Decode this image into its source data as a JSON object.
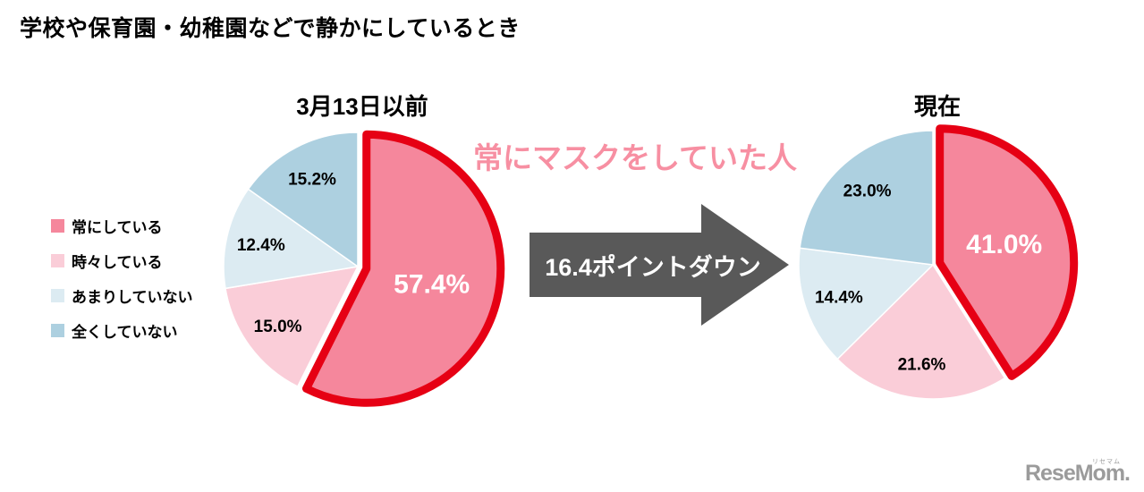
{
  "page_title": "学校や保育園・幼稚園などで静かにしているとき",
  "headline": {
    "text": "常にマスクをしていた人",
    "color": "#F78FA2"
  },
  "arrow": {
    "label": "16.4ポイントダウン",
    "color": "#595959"
  },
  "highlight_color": "#E60014",
  "legend": {
    "items": [
      {
        "label": "常にしている",
        "color": "#F5879C"
      },
      {
        "label": "時々している",
        "color": "#FACDD8"
      },
      {
        "label": "あまりしていない",
        "color": "#DCEBF2"
      },
      {
        "label": "全くしていない",
        "color": "#ADD0E0"
      }
    ]
  },
  "logo": {
    "text": "ReseMom.",
    "ruby": "リセマム",
    "color": "#9b9b9b"
  },
  "chart_data": [
    {
      "type": "pie",
      "title": "3月13日以前",
      "categories": [
        "常にしている",
        "時々している",
        "あまりしていない",
        "全くしていない"
      ],
      "values": [
        57.4,
        15.0,
        12.4,
        15.2
      ],
      "value_labels": [
        "57.4%",
        "15.0%",
        "12.4%",
        "15.2%"
      ],
      "colors": [
        "#F5879C",
        "#FACDD8",
        "#DCEBF2",
        "#ADD0E0"
      ],
      "highlight_index": 0,
      "start_angle": "top",
      "direction": "clockwise"
    },
    {
      "type": "pie",
      "title": "現在",
      "categories": [
        "常にしている",
        "時々している",
        "あまりしていない",
        "全くしていない"
      ],
      "values": [
        41.0,
        21.6,
        14.4,
        23.0
      ],
      "value_labels": [
        "41.0%",
        "21.6%",
        "14.4%",
        "23.0%"
      ],
      "colors": [
        "#F5879C",
        "#FACDD8",
        "#DCEBF2",
        "#ADD0E0"
      ],
      "highlight_index": 0,
      "start_angle": "top",
      "direction": "clockwise"
    }
  ]
}
